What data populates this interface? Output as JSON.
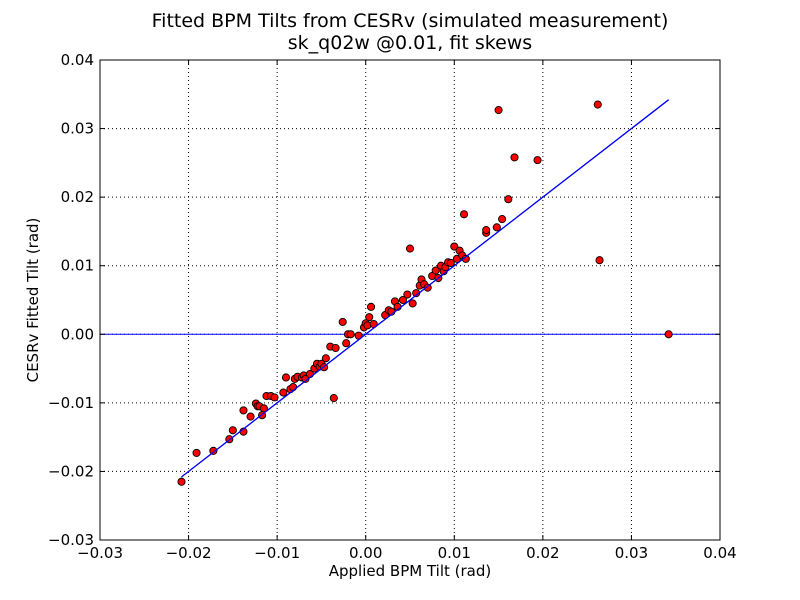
{
  "chart_data": {
    "type": "scatter",
    "title": "Fitted BPM Tilts from CESRv (simulated measurement)",
    "subtitle": "sk_q02w @0.01, fit skews",
    "xlabel": "Applied BPM Tilt (rad)",
    "ylabel": "CESRv Fitted Tilt (rad)",
    "xlim": [
      -0.03,
      0.04
    ],
    "ylim": [
      -0.03,
      0.04
    ],
    "xticks": [
      -0.03,
      -0.02,
      -0.01,
      0.0,
      0.01,
      0.02,
      0.03,
      0.04
    ],
    "yticks": [
      -0.03,
      -0.02,
      -0.01,
      0.0,
      0.01,
      0.02,
      0.03,
      0.04
    ],
    "xtick_labels": [
      "−0.03",
      "−0.02",
      "−0.01",
      "0.00",
      "0.01",
      "0.02",
      "0.03",
      "0.04"
    ],
    "ytick_labels": [
      "−0.03",
      "−0.02",
      "−0.01",
      "0.00",
      "0.01",
      "0.02",
      "0.03",
      "0.04"
    ],
    "grid": true,
    "zero_line": {
      "y": 0.0,
      "color": "#0000ff"
    },
    "fit_line": {
      "x": [
        -0.0208,
        0.0342
      ],
      "y": [
        -0.0208,
        0.0342
      ],
      "color": "#0000ff"
    },
    "marker_color": "#ff0000",
    "marker_edge": "#000000",
    "points": {
      "x": [
        -0.0208,
        -0.0191,
        -0.0172,
        -0.0154,
        -0.015,
        -0.0138,
        -0.0138,
        -0.013,
        -0.0124,
        -0.0122,
        -0.012,
        -0.0117,
        -0.0115,
        -0.0112,
        -0.0107,
        -0.0103,
        -0.0093,
        -0.009,
        -0.0085,
        -0.0082,
        -0.008,
        -0.0077,
        -0.0072,
        -0.007,
        -0.0068,
        -0.0063,
        -0.0058,
        -0.0055,
        -0.0052,
        -0.005,
        -0.0047,
        -0.0045,
        -0.004,
        -0.0036,
        -0.0034,
        -0.0026,
        -0.0022,
        -0.002,
        -0.0017,
        -0.0008,
        -0.0002,
        0.0,
        0.0002,
        0.0004,
        0.0006,
        0.0009,
        0.0022,
        0.0026,
        0.0029,
        0.0033,
        0.0036,
        0.0042,
        0.0047,
        0.005,
        0.0053,
        0.0057,
        0.0061,
        0.0063,
        0.0066,
        0.007,
        0.0075,
        0.0079,
        0.0082,
        0.0085,
        0.0088,
        0.009,
        0.0093,
        0.0096,
        0.01,
        0.0103,
        0.0106,
        0.0109,
        0.0111,
        0.0113,
        0.0136,
        0.0136,
        0.0148,
        0.015,
        0.0154,
        0.0161,
        0.0168,
        0.0194,
        0.0262,
        0.0264,
        0.0342
      ],
      "y": [
        -0.0215,
        -0.0173,
        -0.017,
        -0.0153,
        -0.014,
        -0.0142,
        -0.0111,
        -0.012,
        -0.0101,
        -0.0105,
        -0.0105,
        -0.0118,
        -0.0108,
        -0.009,
        -0.009,
        -0.0092,
        -0.0085,
        -0.0063,
        -0.008,
        -0.0077,
        -0.0065,
        -0.0062,
        -0.0063,
        -0.006,
        -0.0065,
        -0.0058,
        -0.005,
        -0.0043,
        -0.0047,
        -0.0043,
        -0.0048,
        -0.0035,
        -0.0018,
        -0.0093,
        -0.002,
        0.0018,
        -0.0013,
        0.0,
        0.0,
        -0.0002,
        0.001,
        0.0016,
        0.0013,
        0.0025,
        0.004,
        0.0015,
        0.0028,
        0.0035,
        0.0033,
        0.0048,
        0.004,
        0.005,
        0.0058,
        0.0125,
        0.0045,
        0.006,
        0.0071,
        0.008,
        0.0073,
        0.0068,
        0.0085,
        0.0093,
        0.0082,
        0.01,
        0.0092,
        0.0098,
        0.0105,
        0.0104,
        0.0128,
        0.011,
        0.0122,
        0.0115,
        0.0175,
        0.011,
        0.0148,
        0.0152,
        0.0156,
        0.0327,
        0.0168,
        0.0197,
        0.0258,
        0.0254,
        0.0335,
        0.0108,
        0.0
      ]
    }
  }
}
